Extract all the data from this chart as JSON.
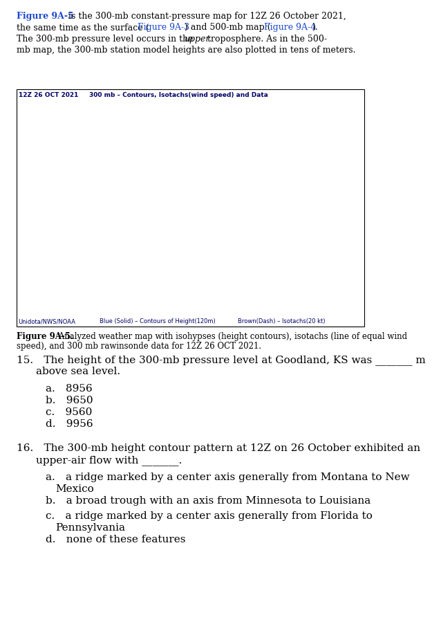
{
  "bg_color": "#ffffff",
  "blue_text": "#1a47cc",
  "black_text": "#000000",
  "map_title_color": "#000066",
  "legend_color": "#000066",
  "contour_blue": "#1a47cc",
  "isotach_brown": "#b87a00",
  "body_fontsize": 9.0,
  "caption_fontsize": 8.5,
  "q_fontsize": 11.0,
  "map_title_fontsize": 6.5,
  "legend_fontsize": 6.0,
  "station_fontsize": 4.0,
  "map_title": "12Z 26 OCT 2021     300 mb – Contours, Isotachs(wind speed) and Data",
  "legend_left": "Unidota/NWS/NOAA",
  "legend_mid": "Blue (Solid) – Contours of Height(120m)",
  "legend_right": "Brown(Dash) – Isotachs(20 kt)",
  "fig_caption_bold": "Figure 9A-5.",
  "fig_caption_rest": " Analyzed weather map with isohypses (height contours), isotachs (line of equal wind\nspeed), and 300 mb rawinsonde data for 12Z 26 OCT 2021.",
  "q15_line1": "15. The height of the 300-mb pressure level at Goodland, KS was _______ m",
  "q15_line2": "above sea level.",
  "q15_opts": [
    "a. 8956",
    "b. 9650",
    "c. 9560",
    "d. 9956"
  ],
  "q16_line1": "16. The 300-mb height contour pattern at 12Z on 26 October exhibited an",
  "q16_line2": "upper-air flow with _______.",
  "q16_opts": [
    [
      "a. a ridge marked by a center axis generally from Montana to New",
      "Mexico"
    ],
    [
      "b. a broad trough with an axis from Minnesota to Louisiana",
      null
    ],
    [
      "c. a ridge marked by a center axis generally from Florida to",
      "Pennsylvania"
    ],
    [
      "d. none of these features",
      null
    ]
  ]
}
